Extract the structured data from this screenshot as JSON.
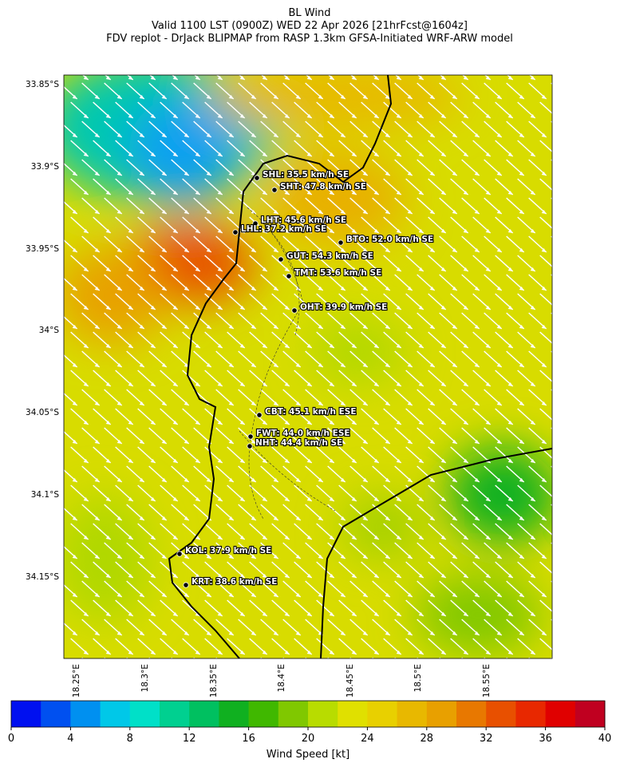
{
  "header": {
    "title": "BL Wind",
    "subtitle": "Valid 1100 LST (0900Z) WED 22 Apr 2026 [21hrFcst@1604z]",
    "source": "FDV replot - DrJack BLIPMAP from RASP 1.3km GFSA-Initiated WRF-ARW model"
  },
  "map": {
    "lat_ticks": [
      "33.85°S",
      "33.9°S",
      "33.95°S",
      "34°S",
      "34.05°S",
      "34.1°S",
      "34.15°S"
    ],
    "lon_ticks": [
      "18.25°E",
      "18.3°E",
      "18.35°E",
      "18.4°E",
      "18.45°E",
      "18.5°E",
      "18.55°E"
    ],
    "stations": [
      "SHL: 35.5 km/h SE",
      "SHT: 47.8 km/h SE",
      "LHT: 45.6 km/h SE",
      "LHL: 37.2 km/h SE",
      "BTO: 52.0 km/h SE",
      "GUT: 54.3 km/h SE",
      "TMT: 53.6 km/h SE",
      "OHT: 39.9 km/h SE",
      "CBT: 45.1 km/h ESE",
      "FWT: 44.0 km/h ESE",
      "NHT: 44.4 km/h SE",
      "KOL: 37.9 km/h SE",
      "KRT: 38.6 km/h SE"
    ]
  },
  "colorbar": {
    "label": "Wind Speed [kt]",
    "lim": [
      0,
      40
    ],
    "ticks": [
      0,
      4,
      8,
      12,
      16,
      20,
      24,
      28,
      32,
      36,
      40
    ],
    "colors": [
      "#0010f0",
      "#0050f0",
      "#0090f0",
      "#00c8e8",
      "#00e0c8",
      "#00d090",
      "#00c060",
      "#10b020",
      "#40b800",
      "#80c800",
      "#b8dc00",
      "#e0e000",
      "#e8d000",
      "#e8b800",
      "#e8a000",
      "#e87800",
      "#e85000",
      "#e82800",
      "#e00000",
      "#c00020"
    ]
  }
}
